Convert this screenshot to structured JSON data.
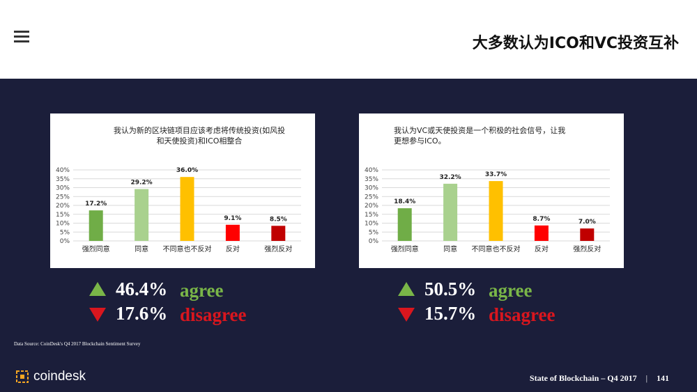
{
  "header": {
    "title": "大多数认为ICO和VC投资互补"
  },
  "charts": [
    {
      "title_line1": "我认为新的区块链项目应该考虑将传统投资(如风投",
      "title_line2": "和天使投资)和ICO相整合"
    },
    {
      "title_line1": "我认为VC或天使投资是一个积极的社会信号，让我",
      "title_line2": "更想参与ICO。"
    }
  ],
  "chart_data": [
    {
      "type": "bar",
      "title": "我认为新的区块链项目应该考虑将传统投资(如风投和天使投资)和ICO相整合",
      "categories": [
        "强烈同意",
        "同意",
        "不同意也不反对",
        "反对",
        "强烈反对"
      ],
      "values": [
        17.2,
        29.2,
        36.0,
        9.1,
        8.5
      ],
      "value_labels": [
        "17.2%",
        "29.2%",
        "36.0%",
        "9.1%",
        "8.5%"
      ],
      "colors": [
        "#70ad47",
        "#a9d18e",
        "#ffc000",
        "#ff0000",
        "#c00000"
      ],
      "ylim": [
        0,
        40
      ],
      "yticks": [
        "0%",
        "5%",
        "10%",
        "15%",
        "20%",
        "25%",
        "30%",
        "35%",
        "40%"
      ],
      "grid": true
    },
    {
      "type": "bar",
      "title": "我认为VC或天使投资是一个积极的社会信号，让我更想参与ICO。",
      "categories": [
        "强烈同意",
        "同意",
        "不同意也不反对",
        "反对",
        "强烈反对"
      ],
      "values": [
        18.4,
        32.2,
        33.7,
        8.7,
        7.0
      ],
      "value_labels": [
        "18.4%",
        "32.2%",
        "33.7%",
        "8.7%",
        "7.0%"
      ],
      "colors": [
        "#70ad47",
        "#a9d18e",
        "#ffc000",
        "#ff0000",
        "#c00000"
      ],
      "ylim": [
        0,
        40
      ],
      "yticks": [
        "0%",
        "5%",
        "10%",
        "15%",
        "20%",
        "25%",
        "30%",
        "35%",
        "40%"
      ],
      "grid": true
    }
  ],
  "summary": [
    {
      "agree_value": "46.4%",
      "agree_label": "agree",
      "disagree_value": "17.6%",
      "disagree_label": "disagree"
    },
    {
      "agree_value": "50.5%",
      "agree_label": "agree",
      "disagree_value": "15.7%",
      "disagree_label": "disagree"
    }
  ],
  "source": "Data Source: CoinDesk's Q4 2017 Blockchain Sentiment Survey",
  "logo": {
    "text": "coindesk"
  },
  "footer": {
    "label": "State of Blockchain – Q4 2017",
    "separator": "|",
    "page": "141"
  }
}
